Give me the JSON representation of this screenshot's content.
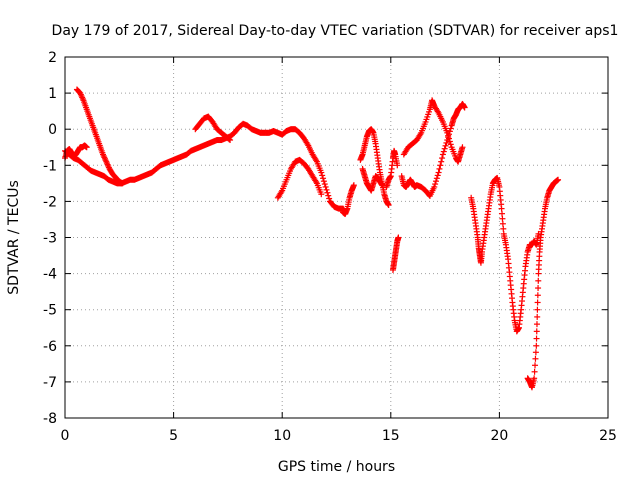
{
  "chart_data": {
    "type": "scatter",
    "title": "Day 179 of 2017, Sidereal Day-to-day VTEC variation (SDTVAR) for receiver aps1",
    "xlabel": "GPS time / hours",
    "ylabel": "SDTVAR / TECUs",
    "xlim": [
      0,
      25
    ],
    "ylim": [
      -8,
      2
    ],
    "xticks": [
      0,
      5,
      10,
      15,
      20,
      25
    ],
    "yticks": [
      -8,
      -7,
      -6,
      -5,
      -4,
      -3,
      -2,
      -1,
      0,
      1,
      2
    ],
    "xtick_labels": [
      "0",
      "5",
      "10",
      "15",
      "20",
      "25"
    ],
    "ytick_labels": [
      "-8",
      "-7",
      "-6",
      "-5",
      "-4",
      "-3",
      "-2",
      "-1",
      "0",
      "1",
      "2"
    ],
    "grid": true,
    "legend": "none",
    "marker": "plus",
    "color": "#ff0000",
    "series": [
      {
        "segments": [
          [
            [
              0.0,
              -0.8
            ],
            [
              0.1,
              -0.6
            ],
            [
              0.2,
              -0.55
            ],
            [
              0.3,
              -0.65
            ],
            [
              0.4,
              -0.75
            ],
            [
              0.5,
              -0.7
            ],
            [
              0.6,
              -0.6
            ],
            [
              0.7,
              -0.5
            ],
            [
              0.8,
              -0.5
            ],
            [
              0.9,
              -0.45
            ],
            [
              1.0,
              -0.5
            ]
          ],
          [
            [
              0.0,
              -0.6
            ],
            [
              0.2,
              -0.7
            ],
            [
              0.4,
              -0.8
            ],
            [
              0.6,
              -0.85
            ],
            [
              0.8,
              -0.95
            ],
            [
              1.0,
              -1.05
            ],
            [
              1.2,
              -1.15
            ],
            [
              1.4,
              -1.2
            ],
            [
              1.6,
              -1.25
            ],
            [
              1.8,
              -1.3
            ],
            [
              2.0,
              -1.4
            ],
            [
              2.2,
              -1.45
            ],
            [
              2.4,
              -1.5
            ],
            [
              2.6,
              -1.5
            ]
          ],
          [
            [
              0.55,
              1.1
            ],
            [
              0.7,
              1.0
            ],
            [
              0.85,
              0.8
            ],
            [
              1.0,
              0.55
            ],
            [
              1.15,
              0.3
            ],
            [
              1.3,
              0.05
            ],
            [
              1.45,
              -0.2
            ],
            [
              1.6,
              -0.45
            ],
            [
              1.75,
              -0.7
            ],
            [
              1.9,
              -0.9
            ],
            [
              2.05,
              -1.1
            ],
            [
              2.2,
              -1.25
            ],
            [
              2.35,
              -1.35
            ],
            [
              2.5,
              -1.45
            ],
            [
              2.65,
              -1.5
            ]
          ],
          [
            [
              2.6,
              -1.5
            ],
            [
              2.8,
              -1.45
            ],
            [
              3.0,
              -1.4
            ],
            [
              3.2,
              -1.4
            ],
            [
              3.4,
              -1.35
            ],
            [
              3.6,
              -1.3
            ],
            [
              3.8,
              -1.25
            ],
            [
              4.0,
              -1.2
            ],
            [
              4.2,
              -1.1
            ],
            [
              4.4,
              -1.0
            ],
            [
              4.6,
              -0.95
            ],
            [
              4.8,
              -0.9
            ],
            [
              5.0,
              -0.85
            ],
            [
              5.2,
              -0.8
            ],
            [
              5.4,
              -0.75
            ],
            [
              5.6,
              -0.7
            ],
            [
              5.8,
              -0.6
            ],
            [
              6.0,
              -0.55
            ],
            [
              6.2,
              -0.5
            ],
            [
              6.4,
              -0.45
            ],
            [
              6.6,
              -0.4
            ],
            [
              6.8,
              -0.35
            ],
            [
              7.0,
              -0.3
            ],
            [
              7.2,
              -0.3
            ],
            [
              7.4,
              -0.25
            ],
            [
              7.6,
              -0.2
            ],
            [
              7.8,
              -0.1
            ],
            [
              8.0,
              0.05
            ],
            [
              8.2,
              0.15
            ],
            [
              8.4,
              0.1
            ],
            [
              8.6,
              0.0
            ],
            [
              8.8,
              -0.05
            ],
            [
              9.0,
              -0.1
            ],
            [
              9.2,
              -0.1
            ],
            [
              9.4,
              -0.1
            ],
            [
              9.6,
              -0.05
            ],
            [
              9.8,
              -0.1
            ],
            [
              10.0,
              -0.15
            ],
            [
              10.2,
              -0.05
            ],
            [
              10.4,
              0.0
            ],
            [
              10.6,
              0.0
            ],
            [
              10.8,
              -0.1
            ],
            [
              11.0,
              -0.25
            ],
            [
              11.2,
              -0.45
            ],
            [
              11.4,
              -0.7
            ],
            [
              11.6,
              -0.9
            ],
            [
              11.8,
              -1.2
            ],
            [
              12.0,
              -1.6
            ],
            [
              12.2,
              -2.0
            ],
            [
              12.4,
              -2.15
            ],
            [
              12.6,
              -2.2
            ],
            [
              12.8,
              -2.2
            ],
            [
              12.9,
              -2.3
            ]
          ],
          [
            [
              6.0,
              0.0
            ],
            [
              6.2,
              0.15
            ],
            [
              6.4,
              0.3
            ],
            [
              6.6,
              0.35
            ],
            [
              6.8,
              0.2
            ],
            [
              7.0,
              0.0
            ],
            [
              7.2,
              -0.1
            ],
            [
              7.4,
              -0.2
            ],
            [
              7.6,
              -0.3
            ]
          ],
          [
            [
              9.8,
              -1.9
            ],
            [
              10.0,
              -1.7
            ],
            [
              10.2,
              -1.4
            ],
            [
              10.4,
              -1.1
            ],
            [
              10.6,
              -0.9
            ],
            [
              10.8,
              -0.85
            ],
            [
              11.0,
              -0.95
            ],
            [
              11.2,
              -1.1
            ],
            [
              11.4,
              -1.3
            ],
            [
              11.6,
              -1.5
            ],
            [
              11.8,
              -1.8
            ]
          ],
          [
            [
              12.8,
              -2.3
            ],
            [
              12.9,
              -2.35
            ],
            [
              13.0,
              -2.2
            ],
            [
              13.1,
              -1.9
            ],
            [
              13.2,
              -1.7
            ],
            [
              13.3,
              -1.55
            ]
          ],
          [
            [
              13.6,
              -0.85
            ],
            [
              13.7,
              -0.7
            ],
            [
              13.8,
              -0.45
            ],
            [
              13.9,
              -0.2
            ],
            [
              14.0,
              -0.05
            ],
            [
              14.1,
              0.0
            ],
            [
              14.2,
              -0.1
            ],
            [
              14.3,
              -0.4
            ],
            [
              14.4,
              -0.8
            ],
            [
              14.5,
              -1.2
            ],
            [
              14.6,
              -1.5
            ],
            [
              14.7,
              -1.8
            ],
            [
              14.8,
              -2.0
            ],
            [
              14.9,
              -2.1
            ]
          ],
          [
            [
              13.7,
              -1.1
            ],
            [
              13.8,
              -1.3
            ],
            [
              13.9,
              -1.5
            ],
            [
              14.0,
              -1.6
            ],
            [
              14.1,
              -1.7
            ],
            [
              14.2,
              -1.5
            ],
            [
              14.3,
              -1.3
            ],
            [
              14.4,
              -1.35
            ],
            [
              14.5,
              -1.45
            ],
            [
              14.6,
              -1.55
            ]
          ],
          [
            [
              14.8,
              -1.6
            ],
            [
              14.9,
              -1.4
            ],
            [
              15.0,
              -1.3
            ],
            [
              15.1,
              -0.8
            ],
            [
              15.15,
              -0.6
            ],
            [
              15.2,
              -0.7
            ],
            [
              15.3,
              -1.0
            ]
          ],
          [
            [
              15.1,
              -3.9
            ],
            [
              15.15,
              -3.7
            ],
            [
              15.2,
              -3.5
            ],
            [
              15.25,
              -3.3
            ],
            [
              15.3,
              -3.1
            ],
            [
              15.35,
              -3.0
            ]
          ],
          [
            [
              15.5,
              -1.3
            ],
            [
              15.6,
              -1.55
            ],
            [
              15.7,
              -1.6
            ],
            [
              15.8,
              -1.5
            ],
            [
              15.9,
              -1.4
            ],
            [
              16.0,
              -1.5
            ],
            [
              16.1,
              -1.6
            ],
            [
              16.2,
              -1.55
            ],
            [
              16.4,
              -1.6
            ],
            [
              16.6,
              -1.7
            ],
            [
              16.8,
              -1.85
            ],
            [
              17.0,
              -1.6
            ],
            [
              17.2,
              -1.2
            ],
            [
              17.4,
              -0.7
            ],
            [
              17.6,
              -0.3
            ],
            [
              17.8,
              0.1
            ],
            [
              17.9,
              0.3
            ],
            [
              18.0,
              0.4
            ],
            [
              18.1,
              0.55
            ],
            [
              18.2,
              0.6
            ],
            [
              18.3,
              0.7
            ],
            [
              18.4,
              0.6
            ]
          ],
          [
            [
              15.6,
              -0.7
            ],
            [
              15.8,
              -0.5
            ],
            [
              16.0,
              -0.4
            ],
            [
              16.2,
              -0.3
            ],
            [
              16.4,
              -0.1
            ],
            [
              16.6,
              0.2
            ],
            [
              16.8,
              0.55
            ],
            [
              16.9,
              0.8
            ],
            [
              17.0,
              0.65
            ],
            [
              17.2,
              0.45
            ],
            [
              17.4,
              0.2
            ],
            [
              17.6,
              -0.1
            ],
            [
              17.8,
              -0.5
            ],
            [
              18.0,
              -0.8
            ],
            [
              18.1,
              -0.9
            ],
            [
              18.2,
              -0.7
            ],
            [
              18.3,
              -0.5
            ]
          ],
          [
            [
              18.7,
              -1.9
            ],
            [
              18.8,
              -2.2
            ],
            [
              18.9,
              -2.6
            ],
            [
              19.0,
              -3.0
            ],
            [
              19.05,
              -3.3
            ],
            [
              19.1,
              -3.5
            ],
            [
              19.15,
              -3.7
            ],
            [
              19.2,
              -3.4
            ],
            [
              19.3,
              -3.0
            ],
            [
              19.4,
              -2.6
            ],
            [
              19.5,
              -2.2
            ],
            [
              19.6,
              -1.8
            ],
            [
              19.7,
              -1.5
            ],
            [
              19.8,
              -1.4
            ],
            [
              19.9,
              -1.35
            ],
            [
              20.0,
              -1.6
            ],
            [
              20.1,
              -2.2
            ],
            [
              20.2,
              -2.9
            ],
            [
              20.3,
              -3.2
            ],
            [
              20.4,
              -3.6
            ],
            [
              20.5,
              -4.2
            ],
            [
              20.6,
              -4.8
            ],
            [
              20.7,
              -5.3
            ],
            [
              20.8,
              -5.6
            ],
            [
              20.9,
              -5.5
            ],
            [
              21.0,
              -5.0
            ],
            [
              21.1,
              -4.4
            ],
            [
              21.2,
              -3.8
            ],
            [
              21.3,
              -3.4
            ],
            [
              21.4,
              -3.2
            ],
            [
              21.5,
              -3.2
            ],
            [
              21.6,
              -3.1
            ],
            [
              21.7,
              -3.2
            ],
            [
              21.8,
              -2.9
            ]
          ],
          [
            [
              21.3,
              -6.9
            ],
            [
              21.4,
              -7.0
            ],
            [
              21.5,
              -7.15
            ],
            [
              21.6,
              -6.9
            ],
            [
              21.7,
              -6.0
            ],
            [
              21.75,
              -5.0
            ],
            [
              21.8,
              -4.0
            ],
            [
              21.85,
              -3.4
            ],
            [
              21.9,
              -3.0
            ],
            [
              22.0,
              -2.6
            ],
            [
              22.1,
              -2.2
            ],
            [
              22.2,
              -1.9
            ],
            [
              22.3,
              -1.7
            ],
            [
              22.4,
              -1.6
            ],
            [
              22.5,
              -1.5
            ],
            [
              22.6,
              -1.45
            ],
            [
              22.7,
              -1.4
            ]
          ]
        ]
      }
    ]
  }
}
